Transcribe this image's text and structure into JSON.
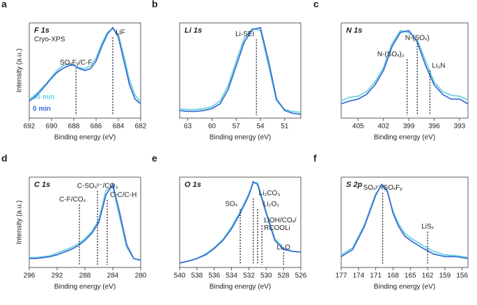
{
  "chart_data": [
    {
      "type": "line",
      "label": "a",
      "title": "F 1s",
      "subtitle": "Cryo-XPS",
      "ylabel": "Intensity (a.u.)",
      "xlabel": "Binding energy (eV)",
      "xlim": [
        692,
        682
      ],
      "xticks": [
        692,
        690,
        688,
        686,
        684,
        682
      ],
      "ylim": [
        0,
        1
      ],
      "x": [
        692,
        691.5,
        691,
        690.5,
        690,
        689.5,
        689,
        688.5,
        688,
        687.5,
        687,
        686.5,
        686,
        685.5,
        685,
        684.5,
        684,
        683.5,
        683,
        682.5,
        682
      ],
      "series": [
        {
          "name": "60 min",
          "color": "#6fd4dc",
          "values": [
            0.2,
            0.24,
            0.3,
            0.36,
            0.43,
            0.5,
            0.55,
            0.57,
            0.55,
            0.53,
            0.52,
            0.55,
            0.63,
            0.78,
            0.9,
            0.94,
            0.88,
            0.65,
            0.4,
            0.24,
            0.17
          ]
        },
        {
          "name": "0 min",
          "color": "#3a6fd6",
          "values": [
            0.18,
            0.22,
            0.28,
            0.35,
            0.42,
            0.48,
            0.52,
            0.55,
            0.56,
            0.52,
            0.5,
            0.52,
            0.6,
            0.75,
            0.88,
            0.95,
            0.85,
            0.6,
            0.35,
            0.2,
            0.15
          ]
        }
      ],
      "references": [
        {
          "label": "SOₓFᵧ/C-F",
          "x": 687.8
        },
        {
          "label": "LiF",
          "x": 684.5
        }
      ]
    },
    {
      "type": "line",
      "label": "b",
      "title": "Li 1s",
      "xlabel": "Binding energy (eV)",
      "xlim": [
        64,
        49
      ],
      "xticks": [
        63,
        60,
        57,
        54,
        51
      ],
      "ylim": [
        0,
        1
      ],
      "x": [
        64,
        63,
        62,
        61,
        60,
        59,
        58,
        57,
        56,
        55,
        54,
        53,
        52,
        51,
        50,
        49
      ],
      "series": [
        {
          "color": "#6fd4dc",
          "values": [
            0.1,
            0.09,
            0.09,
            0.1,
            0.12,
            0.18,
            0.34,
            0.6,
            0.84,
            0.94,
            0.92,
            0.55,
            0.18,
            0.09,
            0.07,
            0.06
          ]
        },
        {
          "color": "#3a6fd6",
          "values": [
            0.08,
            0.07,
            0.07,
            0.08,
            0.1,
            0.15,
            0.3,
            0.55,
            0.8,
            0.93,
            0.95,
            0.6,
            0.2,
            0.08,
            0.05,
            0.04
          ]
        }
      ],
      "references": [
        {
          "label": "Li-SEI",
          "x": 54.5
        }
      ]
    },
    {
      "type": "line",
      "label": "c",
      "title": "N 1s",
      "xlabel": "Binding energy (eV)",
      "xlim": [
        407,
        392
      ],
      "xticks": [
        405,
        402,
        399,
        396,
        393
      ],
      "ylim": [
        0,
        1
      ],
      "x": [
        407,
        406,
        405,
        404,
        403,
        402,
        401,
        400,
        399,
        398,
        397,
        396,
        395,
        394,
        393,
        392
      ],
      "series": [
        {
          "color": "#6fd4dc",
          "values": [
            0.18,
            0.22,
            0.23,
            0.28,
            0.38,
            0.53,
            0.78,
            0.92,
            0.9,
            0.82,
            0.6,
            0.38,
            0.28,
            0.24,
            0.23,
            0.19
          ]
        },
        {
          "color": "#3a6fd6",
          "values": [
            0.15,
            0.18,
            0.2,
            0.25,
            0.35,
            0.5,
            0.75,
            0.9,
            0.92,
            0.8,
            0.55,
            0.35,
            0.25,
            0.2,
            0.2,
            0.15
          ]
        }
      ],
      "references": [
        {
          "label": "N-(SOₓ)₂",
          "x": 399.2
        },
        {
          "label": "N-(SOₓ)",
          "x": 398
        },
        {
          "label": "Li₃N",
          "x": 396.5
        }
      ]
    },
    {
      "type": "line",
      "label": "d",
      "title": "C 1s",
      "ylabel": "Intensity (a.u.)",
      "xlabel": "Binding energy (eV)",
      "xlim": [
        296,
        280
      ],
      "xticks": [
        296,
        292,
        288,
        284,
        280
      ],
      "ylim": [
        0,
        1
      ],
      "x": [
        296,
        295,
        294,
        293,
        292,
        291,
        290,
        289,
        288,
        287,
        286,
        285,
        284,
        283,
        282,
        281,
        280
      ],
      "series": [
        {
          "color": "#6fd4dc",
          "values": [
            0.11,
            0.11,
            0.12,
            0.13,
            0.16,
            0.19,
            0.22,
            0.26,
            0.32,
            0.4,
            0.53,
            0.85,
            0.9,
            0.55,
            0.22,
            0.1,
            0.08
          ]
        },
        {
          "color": "#3a6fd6",
          "values": [
            0.1,
            0.1,
            0.11,
            0.12,
            0.14,
            0.17,
            0.2,
            0.24,
            0.3,
            0.38,
            0.5,
            0.8,
            0.92,
            0.6,
            0.25,
            0.1,
            0.08
          ]
        }
      ],
      "references": [
        {
          "label": "C-F/COₓ",
          "x": 288.8
        },
        {
          "label": "C-SOₓʸ⁻/CO₃",
          "x": 286.2
        },
        {
          "label": "C-C/C-H",
          "x": 284.8
        }
      ]
    },
    {
      "type": "line",
      "label": "e",
      "title": "O 1s",
      "xlabel": "Binding energy (eV)",
      "xlim": [
        540,
        526
      ],
      "xticks": [
        540,
        538,
        536,
        534,
        532,
        530,
        528,
        526
      ],
      "ylim": [
        0,
        1
      ],
      "x": [
        540,
        539,
        538,
        537,
        536,
        535,
        534,
        533,
        532,
        531.5,
        531,
        530,
        529,
        528,
        527,
        526
      ],
      "series": [
        {
          "color": "#6fd4dc",
          "values": [
            0.05,
            0.07,
            0.1,
            0.15,
            0.22,
            0.31,
            0.45,
            0.62,
            0.82,
            0.93,
            0.94,
            0.62,
            0.32,
            0.21,
            0.18,
            0.17
          ]
        },
        {
          "color": "#3a6fd6",
          "values": [
            0.05,
            0.07,
            0.1,
            0.14,
            0.21,
            0.3,
            0.43,
            0.6,
            0.8,
            0.95,
            0.92,
            0.6,
            0.3,
            0.2,
            0.18,
            0.17
          ]
        }
      ],
      "references": [
        {
          "label": "SOₓ",
          "x": 533
        },
        {
          "label": "Li₂CO₃",
          "x": 531.5
        },
        {
          "label": "Li₂O₂",
          "x": 531
        },
        {
          "label": [
            "LiOH/COₓ/",
            "RCOOLi"
          ],
          "x": 530.5
        },
        {
          "label": "Li₂O",
          "x": 528
        }
      ]
    },
    {
      "type": "line",
      "label": "f",
      "title": "S 2p",
      "xlabel": "Binding energy (eV)",
      "xlim": [
        177,
        155
      ],
      "xticks": [
        177,
        174,
        171,
        168,
        165,
        162,
        159,
        156
      ],
      "ylim": [
        0,
        1
      ],
      "x": [
        177,
        175,
        173,
        171,
        170,
        169,
        168,
        167,
        166,
        165,
        163,
        161,
        159,
        157,
        155
      ],
      "series": [
        {
          "color": "#6fd4dc",
          "values": [
            0.14,
            0.22,
            0.47,
            0.82,
            0.9,
            0.84,
            0.62,
            0.48,
            0.38,
            0.33,
            0.25,
            0.18,
            0.14,
            0.13,
            0.11
          ]
        },
        {
          "color": "#3a6fd6",
          "values": [
            0.12,
            0.2,
            0.45,
            0.8,
            0.92,
            0.85,
            0.6,
            0.45,
            0.35,
            0.3,
            0.22,
            0.15,
            0.12,
            0.12,
            0.1
          ]
        }
      ],
      "references": [
        {
          "label": "SOₓʸ⁻/SOₓFᵧ",
          "x": 169.8
        },
        {
          "label": "LiSₓ",
          "x": 162
        }
      ]
    }
  ]
}
